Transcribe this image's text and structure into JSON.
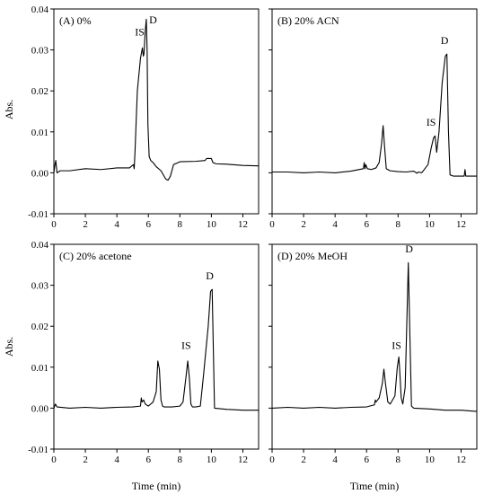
{
  "figure": {
    "ylabel": "Abs.",
    "xlabel": "Time (min)"
  },
  "chart_data": [
    {
      "type": "line",
      "title": "(A) 0%",
      "xlim": [
        0,
        13
      ],
      "ylim": [
        -0.01,
        0.04
      ],
      "xticks": [
        0,
        2,
        4,
        6,
        8,
        10,
        12
      ],
      "yticks": [
        -0.01,
        0.0,
        0.01,
        0.02,
        0.03,
        0.04
      ],
      "ylabel": "Abs.",
      "xlabel": "",
      "annotations": [
        {
          "text": "IS",
          "x": 5.45,
          "y": 0.0335
        },
        {
          "text": "D",
          "x": 6.3,
          "y": 0.0365
        }
      ],
      "series": [
        {
          "x": [
            0,
            0.05,
            0.12,
            0.2,
            0.4,
            1.0,
            2.0,
            3.0,
            4.0,
            4.8,
            5.05,
            5.1,
            5.15,
            5.3,
            5.5,
            5.62,
            5.68,
            5.72,
            5.8,
            5.87,
            5.92,
            5.97,
            6.05,
            6.15,
            6.3,
            6.5,
            6.8,
            7.1,
            7.25,
            7.4,
            7.6,
            8.0,
            9.0,
            9.6,
            9.7,
            10.0,
            10.1,
            10.3,
            11.0,
            12.0,
            13.0
          ],
          "y": [
            0.0,
            0.0015,
            0.003,
            0.0,
            0.0005,
            0.0005,
            0.001,
            0.0008,
            0.0012,
            0.0012,
            0.002,
            0.001,
            0.005,
            0.02,
            0.028,
            0.0305,
            0.0285,
            0.029,
            0.0345,
            0.0375,
            0.03,
            0.012,
            0.004,
            0.003,
            0.0025,
            0.0015,
            0.0005,
            -0.0015,
            -0.0018,
            -0.0008,
            0.002,
            0.0027,
            0.0028,
            0.003,
            0.0035,
            0.0035,
            0.0025,
            0.0022,
            0.0021,
            0.0018,
            0.0017
          ]
        }
      ]
    },
    {
      "type": "line",
      "title": "(B) 20% ACN",
      "xlim": [
        0,
        13
      ],
      "ylim": [
        -0.01,
        0.04
      ],
      "xticks": [
        0,
        2,
        4,
        6,
        8,
        10,
        12
      ],
      "yticks": [
        -0.01,
        0.0,
        0.01,
        0.02,
        0.03,
        0.04
      ],
      "ylabel": "",
      "xlabel": "",
      "annotations": [
        {
          "text": "IS",
          "x": 10.1,
          "y": 0.0115
        },
        {
          "text": "D",
          "x": 10.95,
          "y": 0.0315
        }
      ],
      "series": [
        {
          "x": [
            0,
            1.0,
            2.0,
            3.0,
            4.0,
            5.0,
            5.8,
            5.85,
            5.9,
            5.95,
            6.05,
            6.3,
            6.6,
            6.8,
            6.95,
            7.05,
            7.15,
            7.25,
            7.5,
            8.0,
            8.5,
            9.0,
            9.2,
            9.3,
            9.5,
            9.9,
            10.1,
            10.25,
            10.35,
            10.45,
            10.6,
            10.8,
            11.0,
            11.1,
            11.2,
            11.3,
            11.5,
            12.0,
            12.2,
            12.25,
            12.3,
            13.0
          ],
          "y": [
            0.0002,
            0.0002,
            0.0,
            0.0002,
            0.0,
            0.0004,
            0.001,
            0.0025,
            0.001,
            0.002,
            0.001,
            0.0008,
            0.0012,
            0.0025,
            0.007,
            0.0115,
            0.006,
            0.001,
            0.0005,
            0.0003,
            0.0002,
            0.0004,
            -0.0001,
            0.0002,
            0.0,
            0.002,
            0.006,
            0.0085,
            0.009,
            0.005,
            0.01,
            0.022,
            0.0285,
            0.029,
            0.01,
            -0.0005,
            -0.0008,
            -0.0008,
            -0.0008,
            0.0008,
            -0.0008,
            -0.0008
          ]
        }
      ]
    },
    {
      "type": "line",
      "title": "(C) 20% acetone",
      "xlim": [
        0,
        13
      ],
      "ylim": [
        -0.01,
        0.04
      ],
      "xticks": [
        0,
        2,
        4,
        6,
        8,
        10,
        12
      ],
      "yticks": [
        -0.01,
        0.0,
        0.01,
        0.02,
        0.03,
        0.04
      ],
      "ylabel": "Abs.",
      "xlabel": "Time (min)",
      "annotations": [
        {
          "text": "IS",
          "x": 8.4,
          "y": 0.0145
        },
        {
          "text": "D",
          "x": 9.9,
          "y": 0.0315
        }
      ],
      "series": [
        {
          "x": [
            0,
            0.1,
            0.2,
            1.0,
            2.0,
            3.0,
            4.0,
            5.0,
            5.5,
            5.55,
            5.6,
            5.7,
            5.8,
            6.0,
            6.3,
            6.5,
            6.6,
            6.7,
            6.8,
            6.9,
            7.0,
            7.5,
            8.0,
            8.2,
            8.4,
            8.5,
            8.6,
            8.7,
            8.8,
            9.0,
            9.3,
            9.5,
            9.8,
            9.95,
            10.05,
            10.2,
            11.0,
            12.0,
            13.0
          ],
          "y": [
            0.0,
            0.001,
            0.0003,
            0.0,
            0.0002,
            0.0,
            0.0002,
            0.0003,
            0.0005,
            0.0025,
            0.0015,
            0.002,
            0.001,
            0.0005,
            0.0015,
            0.004,
            0.0115,
            0.0095,
            0.002,
            0.0005,
            0.0003,
            0.0003,
            0.0005,
            0.0015,
            0.008,
            0.0115,
            0.0075,
            0.001,
            0.0003,
            0.0003,
            0.0005,
            0.008,
            0.02,
            0.0285,
            0.029,
            0.0,
            -0.0003,
            -0.0005,
            -0.0005
          ]
        }
      ]
    },
    {
      "type": "line",
      "title": "(D) 20% MeOH",
      "xlim": [
        0,
        13
      ],
      "ylim": [
        -0.01,
        0.04
      ],
      "xticks": [
        0,
        2,
        4,
        6,
        8,
        10,
        12
      ],
      "yticks": [
        -0.01,
        0.0,
        0.01,
        0.02,
        0.03,
        0.04
      ],
      "ylabel": "",
      "xlabel": "Time (min)",
      "annotations": [
        {
          "text": "IS",
          "x": 7.9,
          "y": 0.0145
        },
        {
          "text": "D",
          "x": 8.7,
          "y": 0.038
        }
      ],
      "series": [
        {
          "x": [
            0,
            1.0,
            2.0,
            3.0,
            4.0,
            5.0,
            6.0,
            6.5,
            6.55,
            6.6,
            6.7,
            6.8,
            7.0,
            7.1,
            7.2,
            7.35,
            7.5,
            7.8,
            7.95,
            8.05,
            8.1,
            8.2,
            8.3,
            8.45,
            8.55,
            8.65,
            8.75,
            8.85,
            9.0,
            10.0,
            11.0,
            12.0,
            13.0
          ],
          "y": [
            0.0,
            0.0002,
            0.0,
            0.0002,
            0.0,
            0.0002,
            0.0003,
            0.0008,
            0.002,
            0.0015,
            0.002,
            0.0025,
            0.006,
            0.0095,
            0.006,
            0.0015,
            0.001,
            0.003,
            0.01,
            0.0125,
            0.0095,
            0.0025,
            0.001,
            0.005,
            0.02,
            0.0355,
            0.018,
            0.0005,
            0.0,
            -0.0002,
            -0.0005,
            -0.0005,
            -0.0008
          ]
        }
      ]
    }
  ]
}
